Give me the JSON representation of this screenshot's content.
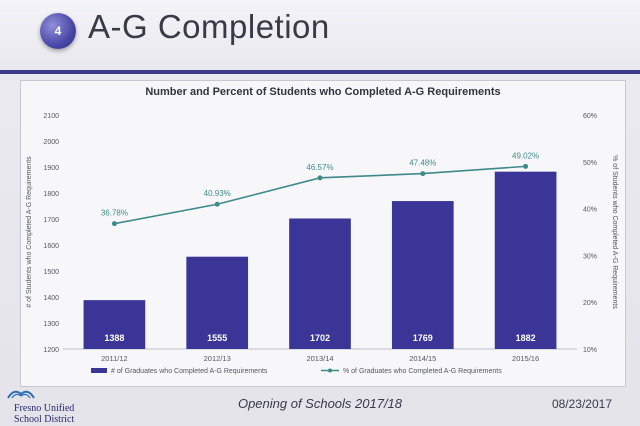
{
  "slide": {
    "number": "4",
    "title": "A-G Completion"
  },
  "footer": {
    "event": "Opening of Schools 2017/18",
    "date": "08/23/2017",
    "logo_line1": "Fresno Unified",
    "logo_line2": "School District"
  },
  "chart_data": {
    "type": "bar",
    "title": "Number and Percent of Students who Completed A-G Requirements",
    "categories": [
      "2011/12",
      "2012/13",
      "2013/14",
      "2014/15",
      "2015/16"
    ],
    "series": [
      {
        "name": "# of Graduates who Completed A-G Requirements",
        "type": "bar",
        "axis": "left",
        "values": [
          1388,
          1555,
          1702,
          1769,
          1882
        ],
        "labels": [
          "1388",
          "1555",
          "1702",
          "1769",
          "1882"
        ],
        "color": "#3a3596"
      },
      {
        "name": "% of Graduates who Completed A-G Requirements",
        "type": "line",
        "axis": "right",
        "values": [
          36.78,
          40.93,
          46.57,
          47.48,
          49.02
        ],
        "labels": [
          "36.78%",
          "40.93%",
          "46.57%",
          "47.48%",
          "49.02%"
        ],
        "color": "#3e8a8a"
      }
    ],
    "ylabel": "# of Students who Completed A-G Requirements",
    "ylabel_right": "% of Students who Completed A-G Requirements",
    "ylim": [
      1200,
      2100
    ],
    "yticks": [
      "1200",
      "1300",
      "1400",
      "1500",
      "1600",
      "1700",
      "1800",
      "1900",
      "2000",
      "2100"
    ],
    "ylim_right": [
      10,
      60
    ],
    "yticks_right": [
      "10%",
      "20%",
      "30%",
      "40%",
      "50%",
      "60%"
    ],
    "legend": "bottom",
    "grid": false
  }
}
